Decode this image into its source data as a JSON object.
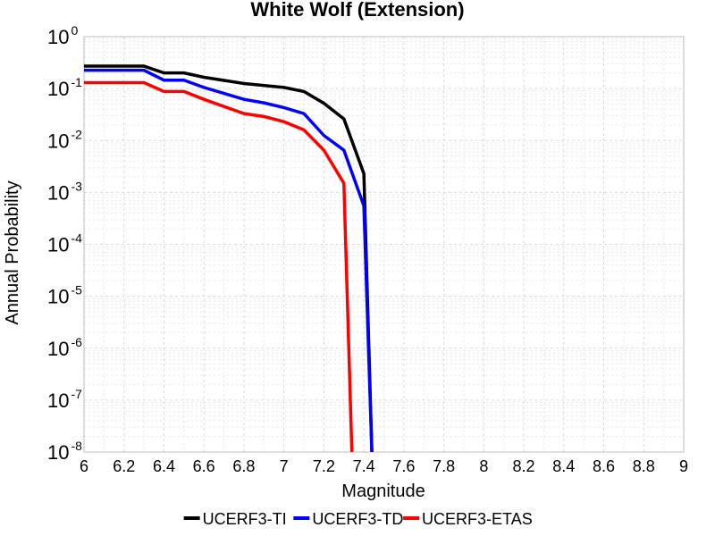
{
  "chart_data": {
    "type": "line",
    "title": "White Wolf (Extension)",
    "xlabel": "Magnitude",
    "ylabel": "Annual Probability",
    "xlim": [
      6,
      9
    ],
    "ylim": [
      1e-08,
      1
    ],
    "yscale": "log",
    "grid": true,
    "legend": "bottom",
    "x_ticks": [
      "6",
      "6.2",
      "6.4",
      "6.6",
      "6.8",
      "7",
      "7.2",
      "7.4",
      "7.6",
      "7.8",
      "8",
      "8.2",
      "8.4",
      "8.6",
      "8.8",
      "9"
    ],
    "y_ticks": [
      {
        "base": "10",
        "exp": "-8",
        "value": 1e-08
      },
      {
        "base": "10",
        "exp": "-7",
        "value": 1e-07
      },
      {
        "base": "10",
        "exp": "-6",
        "value": 1e-06
      },
      {
        "base": "10",
        "exp": "-5",
        "value": 1e-05
      },
      {
        "base": "10",
        "exp": "-4",
        "value": 0.0001
      },
      {
        "base": "10",
        "exp": "-3",
        "value": 0.001
      },
      {
        "base": "10",
        "exp": "-2",
        "value": 0.01
      },
      {
        "base": "10",
        "exp": "-1",
        "value": 0.1
      },
      {
        "base": "10",
        "exp": "0",
        "value": 1
      }
    ],
    "series": [
      {
        "name": "UCERF3-TI",
        "color": "#000000",
        "points": [
          [
            6.0,
            0.27
          ],
          [
            6.3,
            0.27
          ],
          [
            6.4,
            0.2
          ],
          [
            6.5,
            0.2
          ],
          [
            6.6,
            0.165
          ],
          [
            6.8,
            0.125
          ],
          [
            7.0,
            0.105
          ],
          [
            7.1,
            0.088
          ],
          [
            7.2,
            0.052
          ],
          [
            7.3,
            0.026
          ],
          [
            7.4,
            0.0023
          ],
          [
            7.44,
            1e-08
          ]
        ]
      },
      {
        "name": "UCERF3-TD",
        "color": "#0000ff",
        "points": [
          [
            6.0,
            0.225
          ],
          [
            6.3,
            0.225
          ],
          [
            6.4,
            0.145
          ],
          [
            6.5,
            0.145
          ],
          [
            6.6,
            0.105
          ],
          [
            6.8,
            0.062
          ],
          [
            6.9,
            0.053
          ],
          [
            7.0,
            0.043
          ],
          [
            7.1,
            0.033
          ],
          [
            7.2,
            0.0125
          ],
          [
            7.3,
            0.0065
          ],
          [
            7.4,
            0.00055
          ],
          [
            7.44,
            1e-08
          ]
        ]
      },
      {
        "name": "UCERF3-ETAS",
        "color": "#ff0000",
        "points": [
          [
            6.0,
            0.13
          ],
          [
            6.3,
            0.13
          ],
          [
            6.4,
            0.088
          ],
          [
            6.5,
            0.088
          ],
          [
            6.6,
            0.062
          ],
          [
            6.8,
            0.033
          ],
          [
            6.9,
            0.029
          ],
          [
            7.0,
            0.023
          ],
          [
            7.1,
            0.016
          ],
          [
            7.2,
            0.0065
          ],
          [
            7.3,
            0.0015
          ],
          [
            7.34,
            1e-08
          ]
        ]
      }
    ]
  }
}
